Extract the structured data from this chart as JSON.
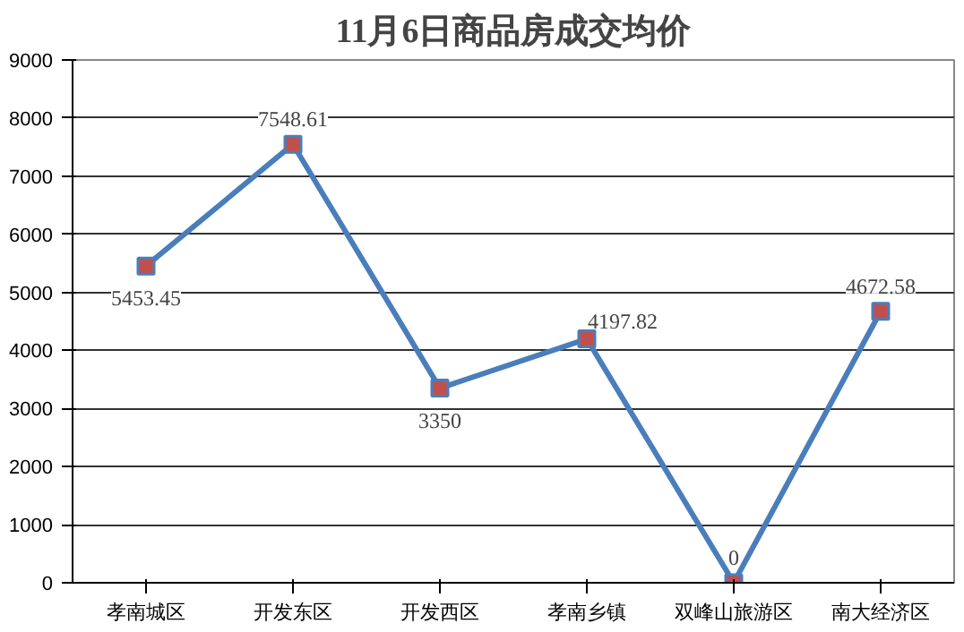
{
  "chart_data": {
    "type": "line",
    "title": "11月6日商品房成交均价",
    "categories": [
      "孝南城区",
      "开发东区",
      "开发西区",
      "孝南乡镇",
      "双峰山旅游区",
      "南大经济区"
    ],
    "values": [
      5453.45,
      7548.61,
      3350,
      4197.82,
      0,
      4672.58
    ],
    "color": "#4a7ebb",
    "marker": "square",
    "data_labels": true,
    "ylim": [
      0,
      9000
    ],
    "yticks": [
      0,
      1000,
      2000,
      3000,
      4000,
      5000,
      6000,
      7000,
      8000,
      9000
    ],
    "grid": "y"
  }
}
